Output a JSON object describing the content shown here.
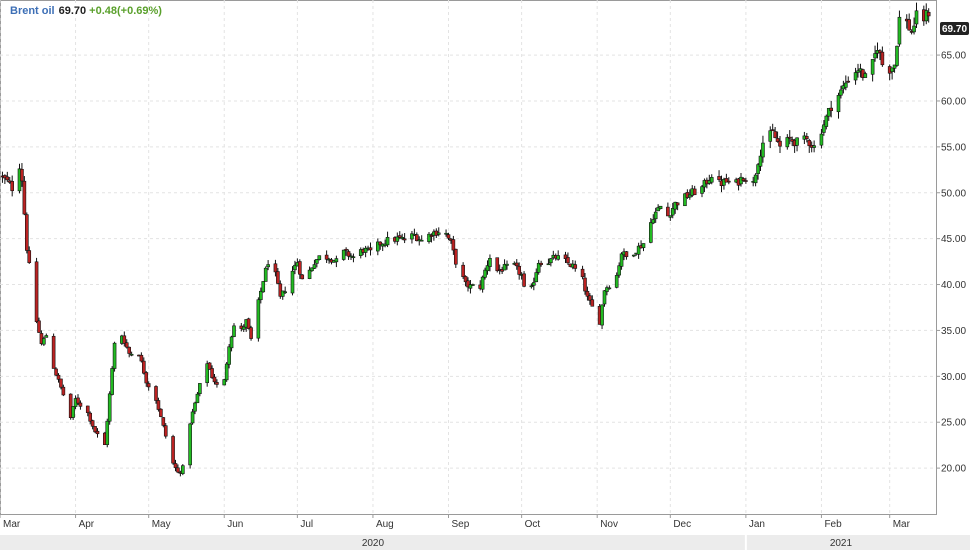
{
  "legend": {
    "name": "Brent oil",
    "last": "69.70",
    "change": "+0.48(+0.69%)",
    "change_color": "#5aa02c"
  },
  "last_price_label": "69.70",
  "colors": {
    "up": "#22bb22",
    "down": "#bb2222",
    "wick": "#111111",
    "price_tag_bg": "#222222",
    "price_tag_text": "#ffffff",
    "legend_name": "#3d6fb6"
  },
  "chart_data": {
    "type": "candlestick",
    "title": "Brent oil",
    "ylim": [
      15,
      71
    ],
    "y_ticks": [
      "20.00",
      "25.00",
      "30.00",
      "35.00",
      "40.00",
      "45.00",
      "50.00",
      "55.00",
      "60.00",
      "65.00"
    ],
    "x_ticks": [
      "Mar",
      "Apr",
      "May",
      "Jun",
      "Jul",
      "Aug",
      "Sep",
      "Oct",
      "Nov",
      "Dec",
      "Jan",
      "Feb",
      "Mar"
    ],
    "x_tick_dates": [
      "2020-03-01",
      "2020-04-01",
      "2020-05-01",
      "2020-06-01",
      "2020-07-01",
      "2020-08-01",
      "2020-09-01",
      "2020-10-01",
      "2020-11-01",
      "2020-12-01",
      "2021-01-01",
      "2021-02-01",
      "2021-03-01"
    ],
    "years": [
      {
        "label": "2020",
        "start": "2020-03-01",
        "end": "2021-01-01"
      },
      {
        "label": "2021",
        "start": "2021-01-01",
        "end": "2021-03-20"
      }
    ],
    "x_range": [
      "2020-03-01",
      "2021-03-20"
    ],
    "grid": true,
    "legend_position": "top-left",
    "close_anchors": [
      [
        "2020-03-01",
        51.9
      ],
      [
        "2020-03-04",
        51.2
      ],
      [
        "2020-03-06",
        50.5
      ],
      [
        "2020-03-09",
        53.0
      ],
      [
        "2020-03-10",
        51.5
      ],
      [
        "2020-03-12",
        44.0
      ],
      [
        "2020-03-16",
        36.0
      ],
      [
        "2020-03-18",
        33.5
      ],
      [
        "2020-03-20",
        34.5
      ],
      [
        "2020-03-23",
        31.0
      ],
      [
        "2020-03-27",
        28.0
      ],
      [
        "2020-03-30",
        25.5
      ],
      [
        "2020-04-01",
        27.5
      ],
      [
        "2020-04-06",
        26.0
      ],
      [
        "2020-04-09",
        24.0
      ],
      [
        "2020-04-13",
        22.5
      ],
      [
        "2020-04-15",
        28.0
      ],
      [
        "2020-04-17",
        33.5
      ],
      [
        "2020-04-20",
        34.5
      ],
      [
        "2020-04-23",
        32.5
      ],
      [
        "2020-04-27",
        32.5
      ],
      [
        "2020-04-30",
        29.5
      ],
      [
        "2020-05-04",
        27.5
      ],
      [
        "2020-05-07",
        24.5
      ],
      [
        "2020-05-11",
        20.5
      ],
      [
        "2020-05-13",
        19.5
      ],
      [
        "2020-05-15",
        20.0
      ],
      [
        "2020-05-18",
        25.0
      ],
      [
        "2020-05-20",
        27.0
      ],
      [
        "2020-05-22",
        29.0
      ],
      [
        "2020-05-25",
        31.5
      ],
      [
        "2020-05-27",
        30.0
      ],
      [
        "2020-05-29",
        29.0
      ],
      [
        "2020-06-01",
        29.5
      ],
      [
        "2020-06-03",
        33.5
      ],
      [
        "2020-06-05",
        35.5
      ],
      [
        "2020-06-08",
        35.0
      ],
      [
        "2020-06-10",
        36.0
      ],
      [
        "2020-06-12",
        34.0
      ],
      [
        "2020-06-15",
        38.0
      ],
      [
        "2020-06-17",
        40.5
      ],
      [
        "2020-06-19",
        42.5
      ],
      [
        "2020-06-22",
        41.0
      ],
      [
        "2020-06-24",
        38.5
      ],
      [
        "2020-06-26",
        39.5
      ],
      [
        "2020-06-29",
        41.5
      ],
      [
        "2020-07-01",
        42.5
      ],
      [
        "2020-07-03",
        40.5
      ],
      [
        "2020-07-06",
        41.5
      ],
      [
        "2020-07-08",
        42.5
      ],
      [
        "2020-07-10",
        43.0
      ],
      [
        "2020-07-14",
        43.0
      ],
      [
        "2020-07-17",
        42.5
      ],
      [
        "2020-07-20",
        43.5
      ],
      [
        "2020-07-24",
        43.0
      ],
      [
        "2020-07-28",
        43.8
      ],
      [
        "2020-07-31",
        43.5
      ],
      [
        "2020-08-04",
        44.5
      ],
      [
        "2020-08-07",
        44.8
      ],
      [
        "2020-08-11",
        45.0
      ],
      [
        "2020-08-14",
        44.9
      ],
      [
        "2020-08-18",
        45.4
      ],
      [
        "2020-08-21",
        44.8
      ],
      [
        "2020-08-25",
        45.6
      ],
      [
        "2020-08-28",
        45.8
      ],
      [
        "2020-08-31",
        45.5
      ],
      [
        "2020-09-02",
        44.5
      ],
      [
        "2020-09-04",
        42.5
      ],
      [
        "2020-09-08",
        40.0
      ],
      [
        "2020-09-10",
        39.8
      ],
      [
        "2020-09-14",
        39.8
      ],
      [
        "2020-09-16",
        41.5
      ],
      [
        "2020-09-18",
        43.0
      ],
      [
        "2020-09-21",
        41.5
      ],
      [
        "2020-09-24",
        41.8
      ],
      [
        "2020-09-28",
        42.0
      ],
      [
        "2020-10-01",
        41.0
      ],
      [
        "2020-10-02",
        39.5
      ],
      [
        "2020-10-05",
        39.5
      ],
      [
        "2020-10-08",
        42.5
      ],
      [
        "2020-10-12",
        42.5
      ],
      [
        "2020-10-15",
        43.0
      ],
      [
        "2020-10-19",
        42.5
      ],
      [
        "2020-10-22",
        42.0
      ],
      [
        "2020-10-26",
        40.5
      ],
      [
        "2020-10-28",
        38.5
      ],
      [
        "2020-10-30",
        37.5
      ],
      [
        "2020-11-02",
        36.0
      ],
      [
        "2020-11-04",
        39.5
      ],
      [
        "2020-11-06",
        40.0
      ],
      [
        "2020-11-09",
        41.0
      ],
      [
        "2020-11-11",
        43.5
      ],
      [
        "2020-11-13",
        43.0
      ],
      [
        "2020-11-17",
        43.8
      ],
      [
        "2020-11-20",
        44.5
      ],
      [
        "2020-11-24",
        47.5
      ],
      [
        "2020-11-27",
        48.5
      ],
      [
        "2020-11-30",
        47.5
      ],
      [
        "2020-12-03",
        48.8
      ],
      [
        "2020-12-07",
        49.5
      ],
      [
        "2020-12-10",
        50.0
      ],
      [
        "2020-12-14",
        50.5
      ],
      [
        "2020-12-18",
        52.0
      ],
      [
        "2020-12-21",
        51.0
      ],
      [
        "2020-12-24",
        51.2
      ],
      [
        "2020-12-28",
        51.0
      ],
      [
        "2020-12-31",
        51.8
      ],
      [
        "2021-01-04",
        51.0
      ],
      [
        "2021-01-06",
        53.5
      ],
      [
        "2021-01-08",
        55.5
      ],
      [
        "2021-01-12",
        56.5
      ],
      [
        "2021-01-15",
        55.0
      ],
      [
        "2021-01-19",
        55.8
      ],
      [
        "2021-01-22",
        55.5
      ],
      [
        "2021-01-26",
        55.8
      ],
      [
        "2021-01-29",
        55.0
      ],
      [
        "2021-02-02",
        57.5
      ],
      [
        "2021-02-05",
        59.5
      ],
      [
        "2021-02-09",
        61.0
      ],
      [
        "2021-02-12",
        62.5
      ],
      [
        "2021-02-16",
        63.5
      ],
      [
        "2021-02-19",
        62.5
      ],
      [
        "2021-02-22",
        64.0
      ],
      [
        "2021-02-24",
        66.0
      ],
      [
        "2021-02-26",
        64.0
      ],
      [
        "2021-03-01",
        63.5
      ],
      [
        "2021-03-03",
        64.0
      ],
      [
        "2021-03-05",
        69.0
      ],
      [
        "2021-03-08",
        68.5
      ],
      [
        "2021-03-10",
        67.5
      ],
      [
        "2021-03-12",
        69.2
      ],
      [
        "2021-03-15",
        69.0
      ],
      [
        "2021-03-17",
        69.7
      ]
    ]
  }
}
